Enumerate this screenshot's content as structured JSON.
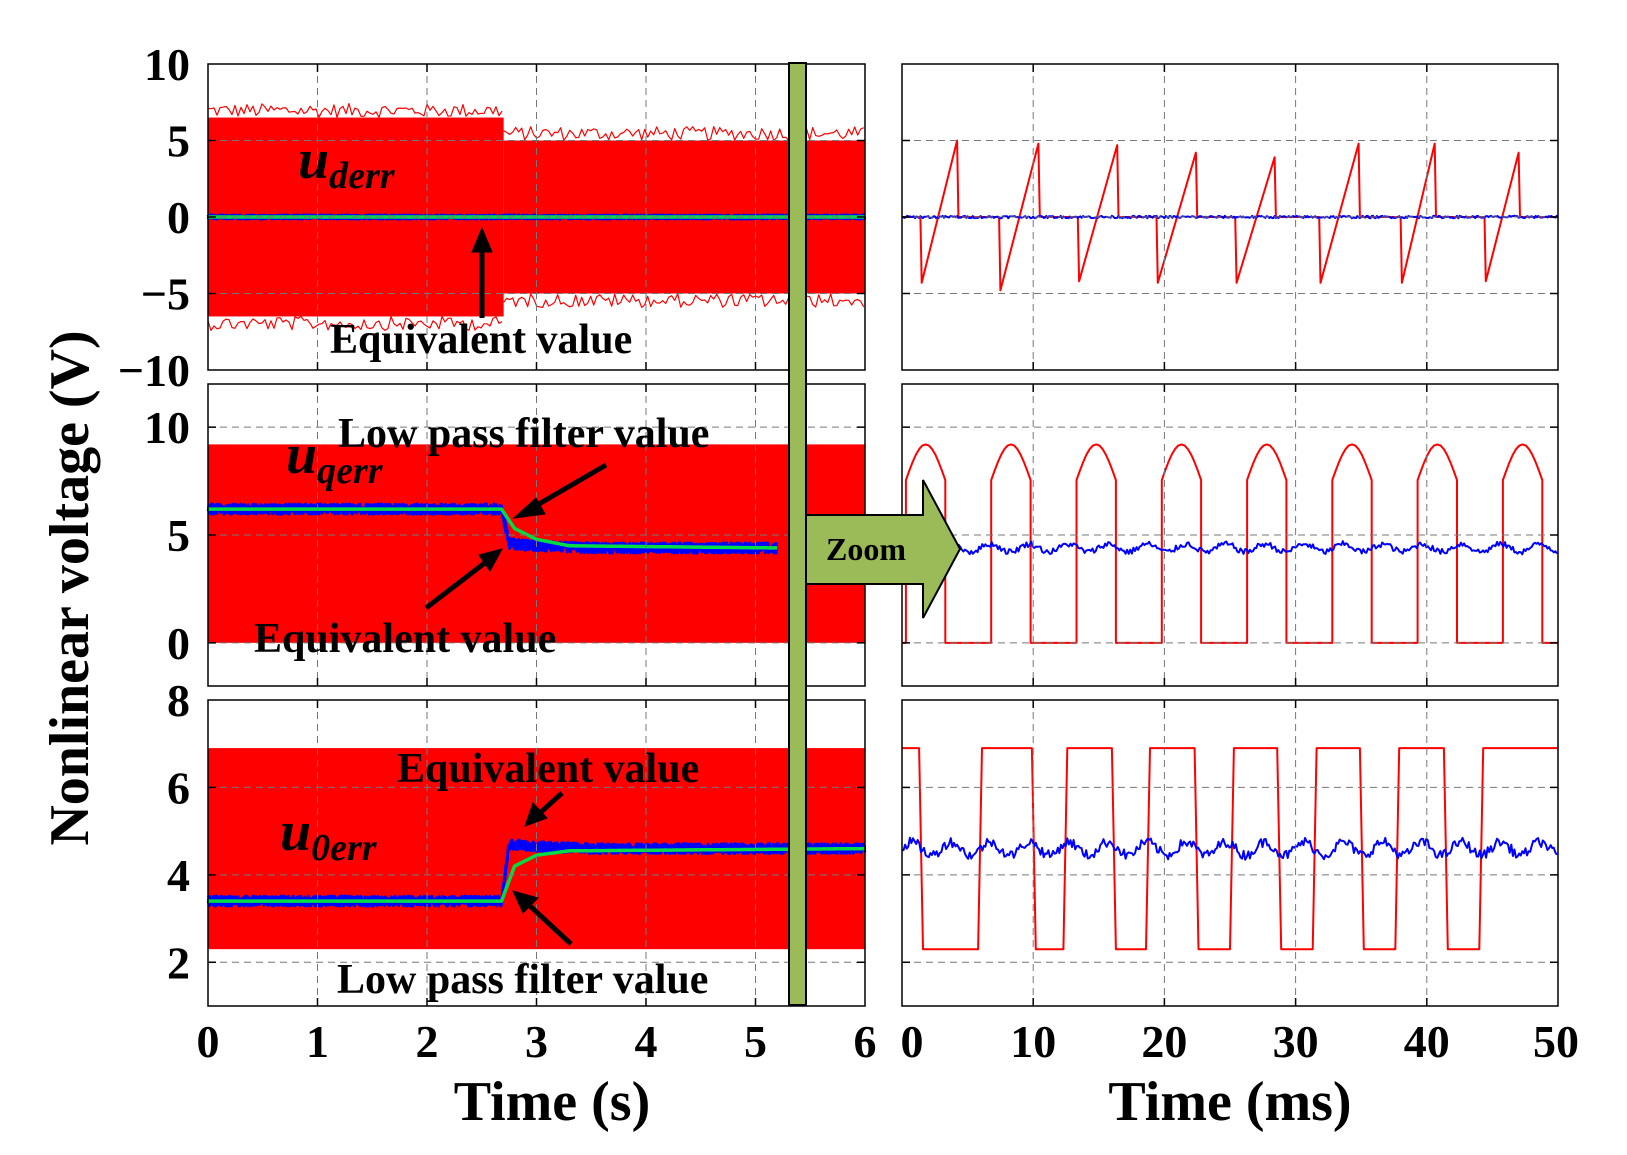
{
  "chart_data": [
    {
      "type": "line",
      "panel": "left-top",
      "title": "",
      "xlabel": "",
      "ylabel": "",
      "ylim": [
        -10,
        10
      ],
      "yticks": [
        10,
        5,
        0,
        -5,
        -10
      ],
      "xlim": [
        0,
        6
      ],
      "signal_label": {
        "main": "u",
        "sub": "derr"
      },
      "series": [
        {
          "color": "#ff0000",
          "kind": "pwm band",
          "segments": [
            {
              "x": [
                0,
                2.7
              ],
              "y": [
                -6.5,
                6.5
              ]
            },
            {
              "x": [
                2.7,
                6
              ],
              "y": [
                -5,
                5
              ]
            }
          ]
        },
        {
          "color": "#0000ff",
          "kind": "equivalent value",
          "x": [
            0,
            2.7,
            6
          ],
          "y": [
            0,
            0,
            0
          ]
        },
        {
          "color": "#00dd44",
          "kind": "low pass filter value",
          "x": [
            0,
            2.7,
            6
          ],
          "y": [
            0,
            0,
            0
          ]
        }
      ],
      "annotations": [
        {
          "text": "Equivalent value"
        }
      ]
    },
    {
      "type": "line",
      "panel": "left-middle",
      "title": "",
      "xlabel": "",
      "ylabel": "",
      "ylim": [
        -2,
        12
      ],
      "yticks": [
        10,
        5,
        0
      ],
      "xlim": [
        0,
        6
      ],
      "signal_label": {
        "main": "u",
        "sub": "qerr"
      },
      "series": [
        {
          "color": "#ff0000",
          "kind": "pwm band",
          "segments": [
            {
              "x": [
                0,
                6
              ],
              "y": [
                0,
                9.2
              ]
            }
          ]
        },
        {
          "color": "#0000ff",
          "kind": "equivalent value",
          "x": [
            0,
            2.68,
            2.75,
            3.0,
            3.5,
            5.2
          ],
          "y": [
            6.2,
            6.2,
            4.6,
            4.5,
            4.4,
            4.4
          ]
        },
        {
          "color": "#00dd44",
          "kind": "low pass filter value",
          "x": [
            0,
            2.68,
            2.8,
            3.0,
            3.3,
            5.2
          ],
          "y": [
            6.2,
            6.2,
            5.3,
            4.8,
            4.5,
            4.4
          ]
        }
      ],
      "annotations": [
        {
          "text": "Low pass filter value"
        },
        {
          "text": "Equivalent value"
        }
      ]
    },
    {
      "type": "line",
      "panel": "left-bottom",
      "title": "",
      "xlabel": "Time (s)",
      "ylabel": "",
      "ylim": [
        1,
        8
      ],
      "yticks": [
        8,
        6,
        4,
        2
      ],
      "xlim": [
        0,
        6
      ],
      "xticks": [
        0,
        1,
        2,
        3,
        4,
        5,
        6
      ],
      "signal_label": {
        "main": "u",
        "sub": "0err"
      },
      "series": [
        {
          "color": "#ff0000",
          "kind": "pwm band",
          "segments": [
            {
              "x": [
                0,
                6
              ],
              "y": [
                2.3,
                6.9
              ]
            }
          ]
        },
        {
          "color": "#0000ff",
          "kind": "equivalent value",
          "x": [
            0,
            2.68,
            2.75,
            3.0,
            3.5,
            6
          ],
          "y": [
            3.4,
            3.4,
            4.7,
            4.65,
            4.6,
            4.6
          ]
        },
        {
          "color": "#00dd44",
          "kind": "low pass filter value",
          "x": [
            0,
            2.68,
            2.8,
            3.0,
            3.3,
            6
          ],
          "y": [
            3.4,
            3.4,
            4.2,
            4.45,
            4.55,
            4.6
          ]
        }
      ],
      "annotations": [
        {
          "text": "Equivalent value"
        },
        {
          "text": "Low pass filter value"
        }
      ]
    },
    {
      "type": "line",
      "panel": "right-top",
      "title": "",
      "xlabel": "",
      "ylabel": "",
      "ylim": [
        -10,
        10
      ],
      "xlim": [
        0,
        50
      ],
      "series": [
        {
          "color": "#ff0000",
          "kind": "sawtooth",
          "x": [
            0,
            1.4,
            1.5,
            4.2,
            4.3,
            7.4,
            7.5,
            10.4,
            10.5,
            13.4,
            13.5,
            16.4,
            16.5,
            19.4,
            19.5,
            22.4,
            22.5,
            25.4,
            25.5,
            28.4,
            28.5,
            31.8,
            31.9,
            34.8,
            34.9,
            38.0,
            38.1,
            40.6,
            40.7,
            44.4,
            44.5,
            47.0,
            47.1,
            50
          ],
          "y": [
            0,
            0,
            -4.3,
            5.0,
            0,
            0,
            -4.8,
            4.8,
            0,
            0,
            -4.2,
            4.7,
            0,
            0,
            -4.3,
            4.2,
            0,
            0,
            -4.3,
            3.9,
            0,
            0,
            -4.3,
            4.8,
            0,
            0,
            -4.3,
            4.8,
            0,
            0,
            -4.2,
            4.2,
            0,
            0
          ]
        },
        {
          "color": "#0000ff",
          "kind": "equivalent value",
          "x": [
            0,
            50
          ],
          "y": [
            0,
            0
          ]
        }
      ]
    },
    {
      "type": "line",
      "panel": "right-middle",
      "title": "",
      "xlabel": "",
      "ylabel": "",
      "ylim": [
        -2,
        12
      ],
      "xlim": [
        0,
        50
      ],
      "series": [
        {
          "color": "#ff0000",
          "kind": "switching waveform",
          "pulses": [
            [
              0.3,
              3.3
            ],
            [
              6.8,
              9.8
            ],
            [
              13.3,
              16.3
            ],
            [
              19.8,
              22.8
            ],
            [
              26.3,
              29.3
            ],
            [
              32.8,
              35.8
            ],
            [
              39.3,
              42.3
            ],
            [
              45.8,
              48.8
            ]
          ],
          "low": 0,
          "high": 9.2
        },
        {
          "color": "#0000ff",
          "kind": "equivalent value",
          "mean": 4.4,
          "ripple": 0.3
        }
      ]
    },
    {
      "type": "line",
      "panel": "right-bottom",
      "title": "",
      "xlabel": "Time (ms)",
      "ylabel": "",
      "ylim": [
        1,
        8
      ],
      "xlim": [
        0,
        50
      ],
      "xticks": [
        0,
        10,
        20,
        30,
        40,
        50
      ],
      "series": [
        {
          "color": "#ff0000",
          "kind": "switching waveform",
          "high_intervals": [
            [
              -0.5,
              1.3
            ],
            [
              5.8,
              9.9
            ],
            [
              12.3,
              16.0
            ],
            [
              18.6,
              22.3
            ],
            [
              25.0,
              28.6
            ],
            [
              31.3,
              34.9
            ],
            [
              37.6,
              41.3
            ],
            [
              44.0,
              50
            ]
          ],
          "low": 2.3,
          "high": 6.9
        },
        {
          "color": "#0000ff",
          "kind": "equivalent value",
          "mean": 4.6,
          "ripple": 0.25
        }
      ]
    }
  ],
  "y_axis_label": "Nonlinear voltage (V)",
  "left_x_label": "Time (s)",
  "right_x_label": "Time (ms)",
  "zoom_label": "Zoom",
  "annotations": {
    "top_equivalent": "Equivalent value",
    "mid_lpf": "Low pass filter value",
    "mid_equivalent": "Equivalent value",
    "bot_equivalent": "Equivalent value",
    "bot_lpf": "Low pass filter value"
  },
  "colors": {
    "pwm": "#ff0000",
    "equivalent": "#0000ff",
    "lpf": "#00dd44",
    "zoom_bar": "#9bbb59"
  }
}
